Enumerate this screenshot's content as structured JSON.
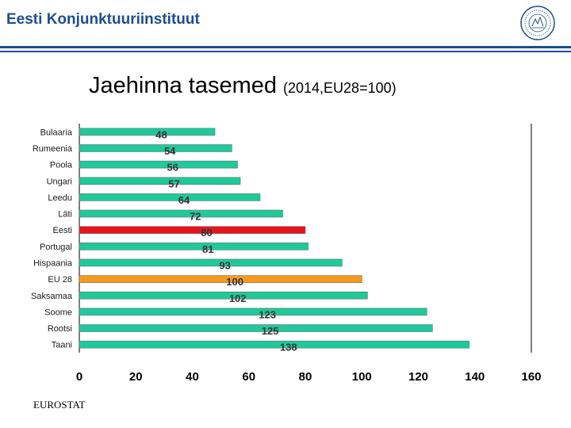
{
  "header": {
    "org_name": "Eesti Konjunktuuriinstituut"
  },
  "title": {
    "main": "Jaehinna tasemed",
    "sub": "(2014,EU28=100)"
  },
  "source": "EUROSTAT",
  "colors": {
    "bar_default": "#1fc99a",
    "bar_estonia": "#e8141b",
    "bar_eu28": "#f59a1a",
    "header_blue": "#1f4e8c",
    "label_text": "#1a1a1a"
  },
  "chart_data": {
    "type": "bar",
    "orientation": "horizontal",
    "categories": [
      "Bulaaria",
      "Rumeenia",
      "Poola",
      "Ungari",
      "Leedu",
      "Läti",
      "Eesti",
      "Portugal",
      "Hispaania",
      "EU 28",
      "Saksamaa",
      "Soome",
      "Rootsi",
      "Taani"
    ],
    "values": [
      48,
      54,
      56,
      57,
      64,
      72,
      80,
      81,
      93,
      100,
      102,
      123,
      125,
      138
    ],
    "highlight": {
      "Eesti": "bar_estonia",
      "EU 28": "bar_eu28"
    },
    "xlim": [
      0,
      160
    ],
    "xticks": [
      0,
      20,
      40,
      60,
      80,
      100,
      120,
      140,
      160
    ],
    "title": "Jaehinna tasemed (2014,EU28=100)",
    "xlabel": "",
    "ylabel": "",
    "grid": false,
    "data_labels": true
  }
}
